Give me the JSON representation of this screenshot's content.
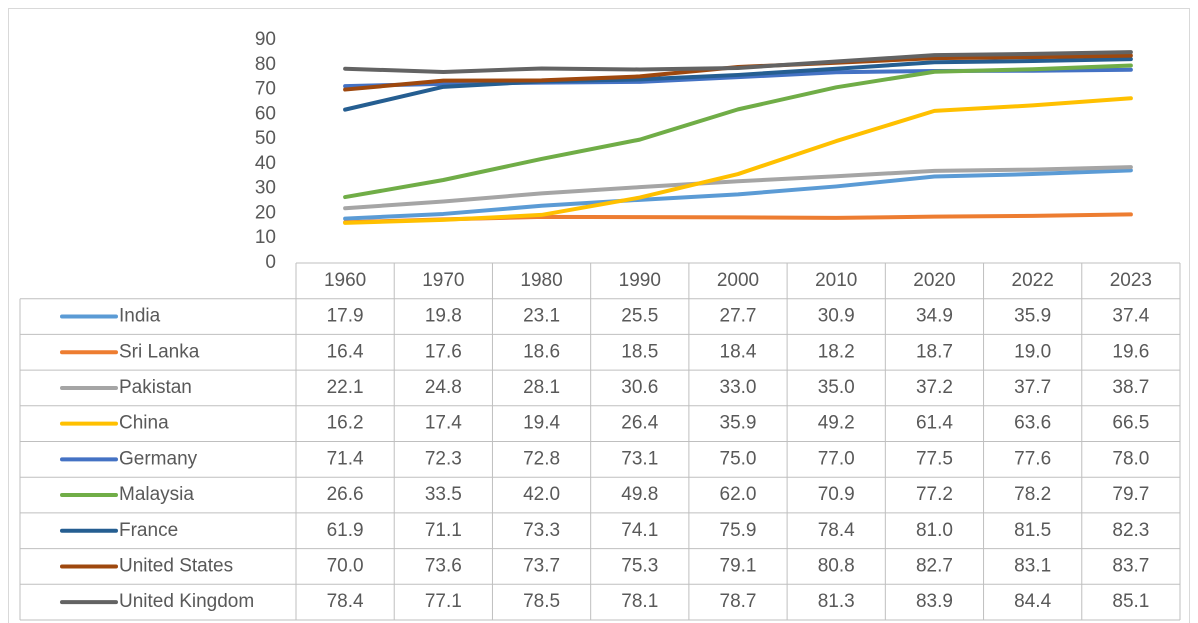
{
  "chart_data": {
    "type": "line",
    "categories": [
      "1960",
      "1970",
      "1980",
      "1990",
      "2000",
      "2010",
      "2020",
      "2022",
      "2023"
    ],
    "ylim": [
      0,
      90
    ],
    "yticks": [
      0,
      10,
      20,
      30,
      40,
      50,
      60,
      70,
      80,
      90
    ],
    "grid": false,
    "series": [
      {
        "name": "India",
        "color": "#5b9bd5",
        "values": [
          17.9,
          19.8,
          23.1,
          25.5,
          27.7,
          30.9,
          34.9,
          35.9,
          37.4
        ],
        "value_labels": [
          "17.9",
          "19.8",
          "23.1",
          "25.5",
          "27.7",
          "30.9",
          "34.9",
          "35.9",
          "37.4"
        ]
      },
      {
        "name": "Sri Lanka",
        "color": "#ed7d31",
        "values": [
          16.4,
          17.6,
          18.6,
          18.5,
          18.4,
          18.2,
          18.7,
          19,
          19.6
        ],
        "value_labels": [
          "16.4",
          "17.6",
          "18.6",
          "18.5",
          "18.4",
          "18.2",
          "18.7",
          "19.0",
          "19.6"
        ]
      },
      {
        "name": "Pakistan",
        "color": "#a5a5a5",
        "values": [
          22.1,
          24.8,
          28.1,
          30.6,
          33,
          35,
          37.2,
          37.7,
          38.7
        ],
        "value_labels": [
          "22.1",
          "24.8",
          "28.1",
          "30.6",
          "33.0",
          "35.0",
          "37.2",
          "37.7",
          "38.7"
        ]
      },
      {
        "name": "China",
        "color": "#ffc000",
        "values": [
          16.2,
          17.4,
          19.4,
          26.4,
          35.9,
          49.2,
          61.4,
          63.6,
          66.5
        ],
        "value_labels": [
          "16.2",
          "17.4",
          "19.4",
          "26.4",
          "35.9",
          "49.2",
          "61.4",
          "63.6",
          "66.5"
        ]
      },
      {
        "name": "Germany",
        "color": "#4472c4",
        "values": [
          71.4,
          72.3,
          72.8,
          73.1,
          75,
          77,
          77.5,
          77.6,
          78
        ],
        "value_labels": [
          "71.4",
          "72.3",
          "72.8",
          "73.1",
          "75.0",
          "77.0",
          "77.5",
          "77.6",
          "78.0"
        ]
      },
      {
        "name": "Malaysia",
        "color": "#70ad47",
        "values": [
          26.6,
          33.5,
          42,
          49.8,
          62,
          70.9,
          77.2,
          78.2,
          79.7
        ],
        "value_labels": [
          "26.6",
          "33.5",
          "42.0",
          "49.8",
          "62.0",
          "70.9",
          "77.2",
          "78.2",
          "79.7"
        ]
      },
      {
        "name": "France",
        "color": "#255e91",
        "values": [
          61.9,
          71.1,
          73.3,
          74.1,
          75.9,
          78.4,
          81,
          81.5,
          82.3
        ],
        "value_labels": [
          "61.9",
          "71.1",
          "73.3",
          "74.1",
          "75.9",
          "78.4",
          "81.0",
          "81.5",
          "82.3"
        ]
      },
      {
        "name": "United States",
        "color": "#9e480e",
        "values": [
          70,
          73.6,
          73.7,
          75.3,
          79.1,
          80.8,
          82.7,
          83.1,
          83.7
        ],
        "value_labels": [
          "70.0",
          "73.6",
          "73.7",
          "75.3",
          "79.1",
          "80.8",
          "82.7",
          "83.1",
          "83.7"
        ]
      },
      {
        "name": "United Kingdom",
        "color": "#636363",
        "values": [
          78.4,
          77.1,
          78.5,
          78.1,
          78.7,
          81.3,
          83.9,
          84.4,
          85.1
        ],
        "value_labels": [
          "78.4",
          "77.1",
          "78.5",
          "78.1",
          "78.7",
          "81.3",
          "83.9",
          "84.4",
          "85.1"
        ]
      }
    ]
  }
}
